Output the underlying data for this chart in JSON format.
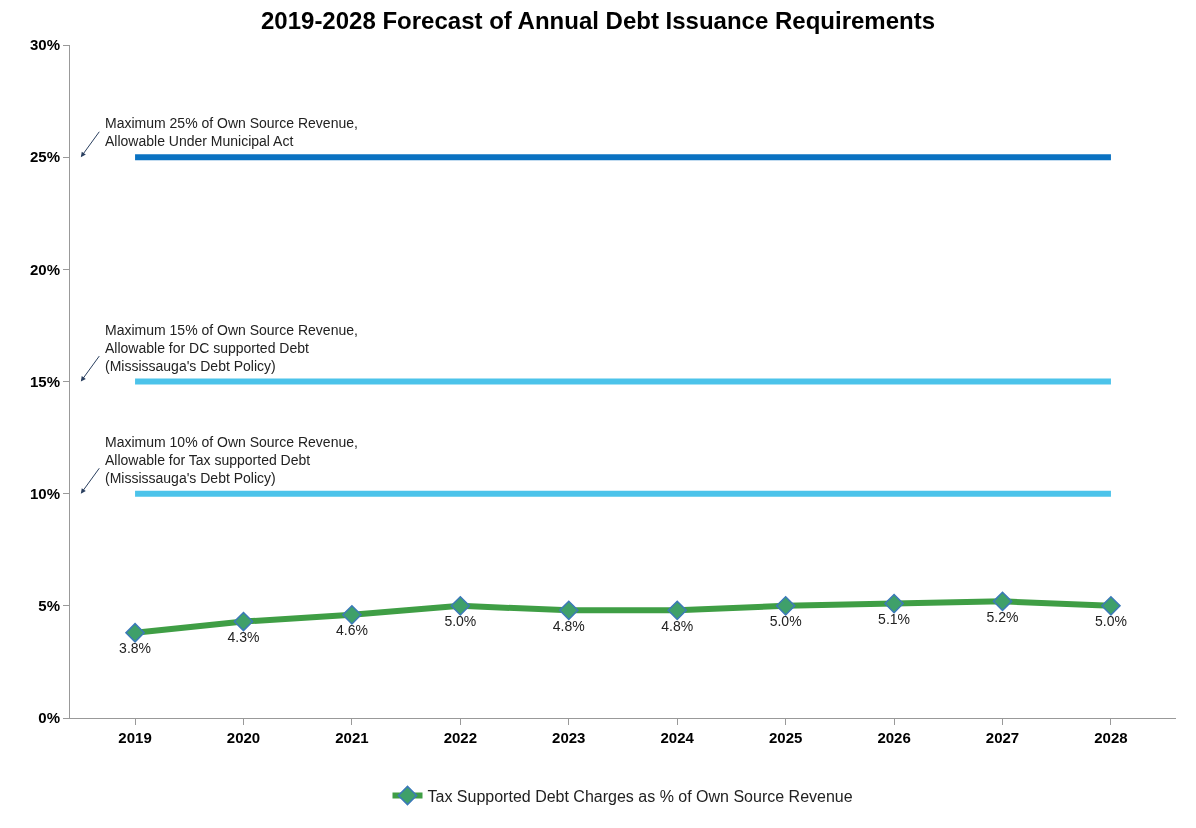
{
  "chart_data": {
    "type": "line",
    "title": "2019-2028 Forecast of Annual Debt Issuance Requirements",
    "categories": [
      "2019",
      "2020",
      "2021",
      "2022",
      "2023",
      "2024",
      "2025",
      "2026",
      "2027",
      "2028"
    ],
    "series": [
      {
        "name": "Tax Supported Debt Charges as % of Own Source Revenue",
        "color": "#3f9e45",
        "values": [
          3.8,
          4.3,
          4.6,
          5.0,
          4.8,
          4.8,
          5.0,
          5.1,
          5.2,
          5.0
        ]
      }
    ],
    "value_labels": [
      "3.8%",
      "4.3%",
      "4.6%",
      "5.0%",
      "4.8%",
      "4.8%",
      "5.0%",
      "5.1%",
      "5.2%",
      "5.0%"
    ],
    "ylim": [
      0,
      30
    ],
    "yticks": [
      {
        "value": 0,
        "label": "0%"
      },
      {
        "value": 5,
        "label": "5%"
      },
      {
        "value": 10,
        "label": "10%"
      },
      {
        "value": 15,
        "label": "15%"
      },
      {
        "value": 20,
        "label": "20%"
      },
      {
        "value": 25,
        "label": "25%"
      },
      {
        "value": 30,
        "label": "30%"
      }
    ],
    "ref_lines": [
      {
        "axis": "y",
        "value": 25,
        "color": "#0a72c2",
        "label": "Maximum 25% of Own Source Revenue,\nAllowable Under Municipal Act"
      },
      {
        "axis": "y",
        "value": 15,
        "color": "#4cc3ea",
        "label": "Maximum 15% of Own Source Revenue,\nAllowable for DC supported Debt\n(Mississauga's Debt Policy)"
      },
      {
        "axis": "y",
        "value": 10,
        "color": "#4cc3ea",
        "label": "Maximum 10% of Own Source Revenue,\nAllowable for Tax supported Debt\n(Mississauga's Debt Policy)"
      }
    ],
    "grid": false,
    "legend": "bottom",
    "marker": "diamond",
    "line_style": "solid"
  }
}
